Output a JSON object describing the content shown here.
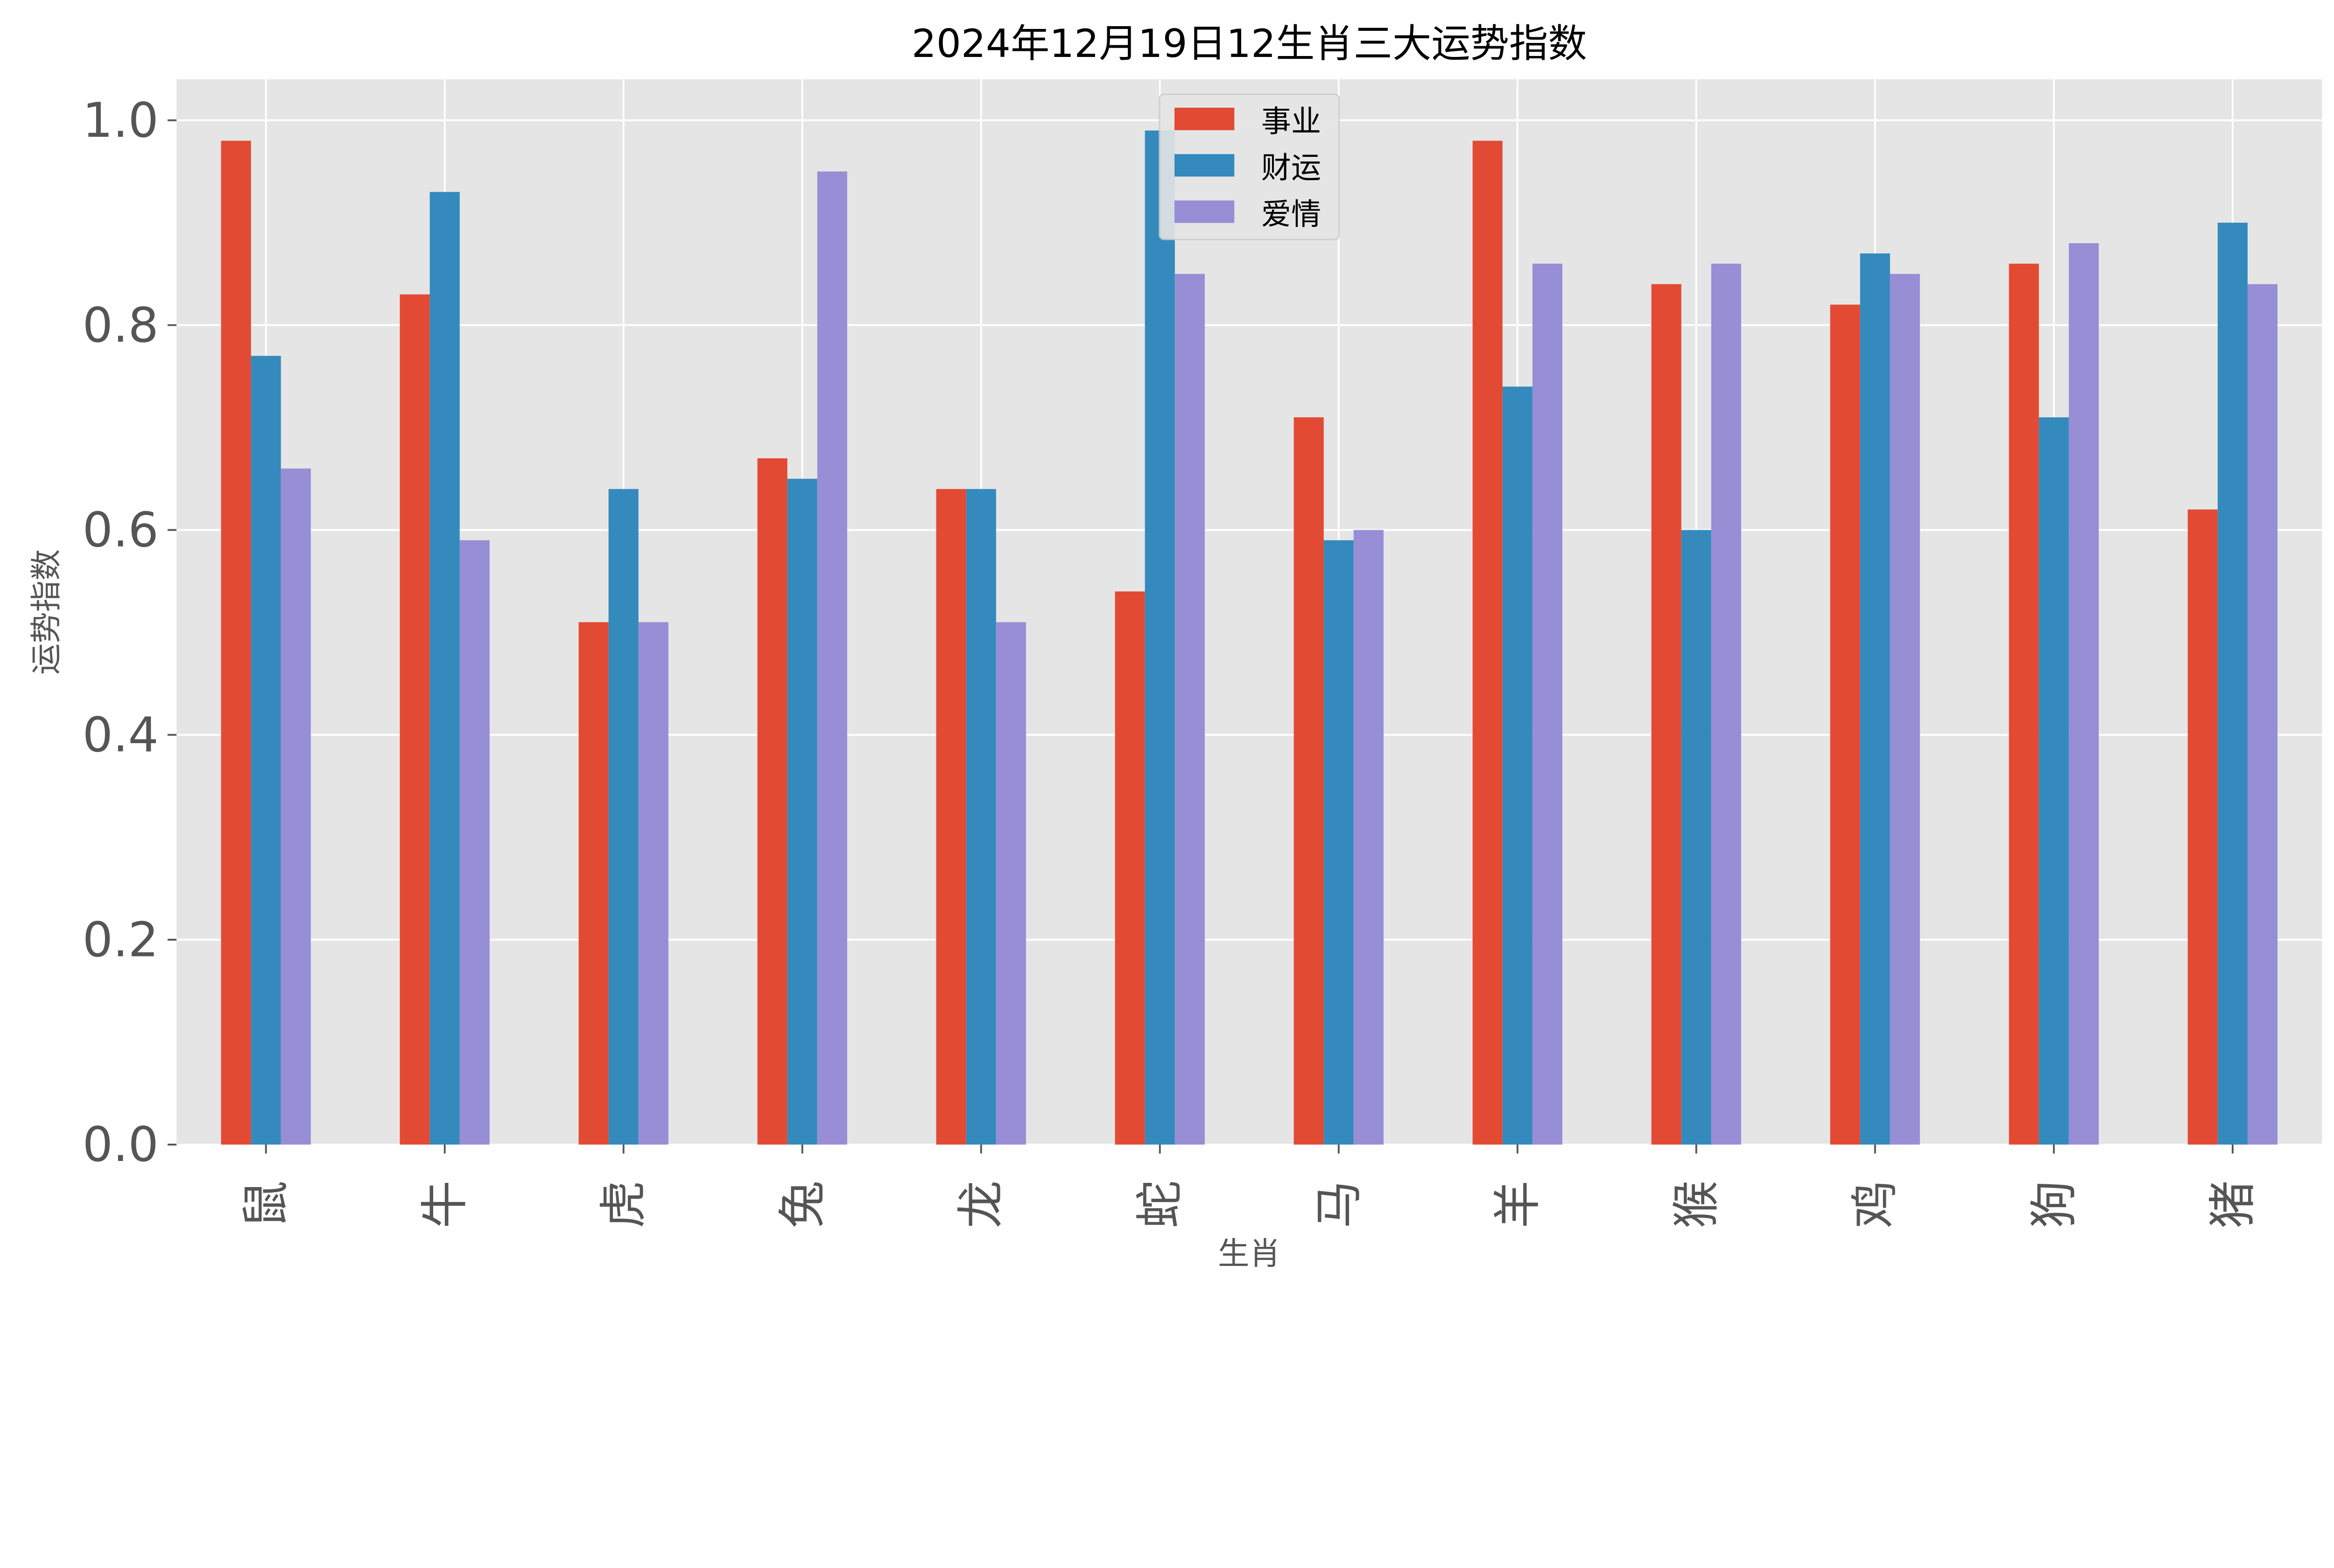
{
  "chart_data": {
    "type": "bar",
    "title": "2024年12月19日12生肖三大运势指数",
    "xlabel": "生肖",
    "ylabel": "运势指数",
    "categories": [
      "鼠",
      "牛",
      "虎",
      "兔",
      "龙",
      "蛇",
      "马",
      "羊",
      "猴",
      "鸡",
      "狗",
      "猪"
    ],
    "series": [
      {
        "name": "事业",
        "color": "#E24A33",
        "values": [
          0.98,
          0.83,
          0.51,
          0.67,
          0.64,
          0.54,
          0.71,
          0.98,
          0.84,
          0.82,
          0.86,
          0.62
        ]
      },
      {
        "name": "财运",
        "color": "#348ABD",
        "values": [
          0.77,
          0.93,
          0.64,
          0.65,
          0.64,
          0.99,
          0.59,
          0.74,
          0.6,
          0.87,
          0.71,
          0.9
        ]
      },
      {
        "name": "爱情",
        "color": "#988ED5",
        "values": [
          0.66,
          0.59,
          0.51,
          0.95,
          0.51,
          0.85,
          0.6,
          0.86,
          0.86,
          0.85,
          0.88,
          0.84
        ]
      }
    ],
    "ylim": [
      0,
      1.04
    ],
    "yticks": [
      "0.0",
      "0.2",
      "0.4",
      "0.6",
      "0.8",
      "1.0"
    ],
    "grid": true,
    "legend": "top-center",
    "background": "#E5E5E5"
  }
}
